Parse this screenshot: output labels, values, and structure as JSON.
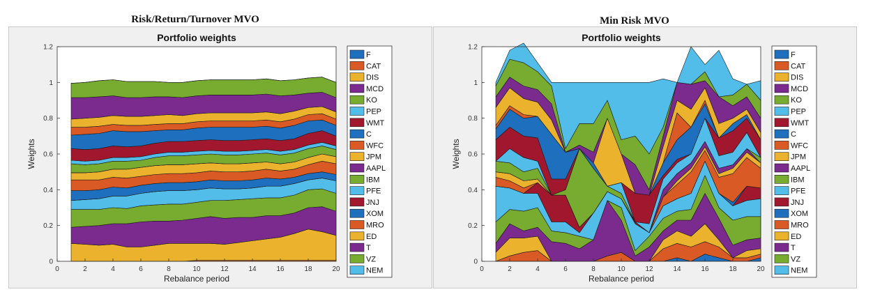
{
  "figures": [
    {
      "suptitle": "Risk/Return/Turnover MVO"
    },
    {
      "suptitle": "Min Risk MVO"
    }
  ],
  "chart_data": [
    {
      "type": "area",
      "title": "Portfolio weights",
      "xlabel": "Rebalance period",
      "ylabel": "Weights",
      "xlim": [
        0,
        20
      ],
      "ylim": [
        0,
        1.2
      ],
      "xticks": [
        0,
        2,
        4,
        6,
        8,
        10,
        12,
        14,
        16,
        18,
        20
      ],
      "yticks": [
        0,
        0.2,
        0.4,
        0.6,
        0.8,
        1,
        1.2
      ],
      "legend_position": "right",
      "x": [
        1,
        2,
        3,
        4,
        5,
        6,
        7,
        8,
        9,
        10,
        11,
        12,
        13,
        14,
        15,
        16,
        17,
        18,
        19,
        20
      ],
      "series": [
        {
          "name": "F",
          "color": "#1f6fbf",
          "values": [
            0,
            0,
            0,
            0,
            0,
            0,
            0,
            0,
            0,
            0,
            0,
            0,
            0,
            0,
            0,
            0,
            0,
            0,
            0,
            0
          ]
        },
        {
          "name": "CAT",
          "color": "#d95a24",
          "values": [
            0,
            0,
            0,
            0,
            0,
            0,
            0,
            0,
            0,
            0.005,
            0.005,
            0.005,
            0.005,
            0.005,
            0.005,
            0.005,
            0.005,
            0.005,
            0.005,
            0.005
          ]
        },
        {
          "name": "DIS",
          "color": "#ebb22e",
          "values": [
            0.1,
            0.095,
            0.09,
            0.095,
            0.08,
            0.08,
            0.09,
            0.1,
            0.1,
            0.095,
            0.095,
            0.09,
            0.1,
            0.11,
            0.12,
            0.13,
            0.15,
            0.175,
            0.16,
            0.14
          ]
        },
        {
          "name": "MCD",
          "color": "#7b2a8e",
          "values": [
            0.09,
            0.1,
            0.11,
            0.115,
            0.13,
            0.14,
            0.135,
            0.125,
            0.13,
            0.14,
            0.15,
            0.145,
            0.14,
            0.13,
            0.13,
            0.12,
            0.115,
            0.12,
            0.14,
            0.135
          ]
        },
        {
          "name": "KO",
          "color": "#77ac30",
          "values": [
            0.1,
            0.095,
            0.09,
            0.09,
            0.085,
            0.09,
            0.09,
            0.095,
            0.09,
            0.09,
            0.09,
            0.1,
            0.1,
            0.105,
            0.1,
            0.1,
            0.1,
            0.1,
            0.1,
            0.1
          ]
        },
        {
          "name": "PEP",
          "color": "#53bde9",
          "values": [
            0.05,
            0.055,
            0.06,
            0.065,
            0.07,
            0.07,
            0.075,
            0.075,
            0.075,
            0.07,
            0.07,
            0.065,
            0.06,
            0.06,
            0.065,
            0.065,
            0.065,
            0.055,
            0.06,
            0.07
          ]
        },
        {
          "name": "WMT",
          "color": "#a0172e",
          "values": [
            0,
            0,
            0,
            0,
            0,
            0,
            0,
            0,
            0,
            0,
            0,
            0,
            0,
            0,
            0,
            0,
            0,
            0,
            0,
            0
          ]
        },
        {
          "name": "C",
          "color": "#1f6fbf",
          "values": [
            0.055,
            0.05,
            0.05,
            0.05,
            0.045,
            0.045,
            0.045,
            0.045,
            0.045,
            0.045,
            0.045,
            0.045,
            0.045,
            0.045,
            0.045,
            0.04,
            0.035,
            0.035,
            0.035,
            0.035
          ]
        },
        {
          "name": "WFC",
          "color": "#d95a24",
          "values": [
            0.06,
            0.06,
            0.055,
            0.055,
            0.055,
            0.05,
            0.05,
            0.05,
            0.05,
            0.05,
            0.05,
            0.05,
            0.05,
            0.05,
            0.05,
            0.045,
            0.045,
            0.05,
            0.06,
            0.06
          ]
        },
        {
          "name": "JPM",
          "color": "#ebb22e",
          "values": [
            0.04,
            0.04,
            0.045,
            0.045,
            0.05,
            0.05,
            0.05,
            0.05,
            0.05,
            0.05,
            0.045,
            0.045,
            0.045,
            0.045,
            0.04,
            0.04,
            0.04,
            0.04,
            0.04,
            0.04
          ]
        },
        {
          "name": "AAPL",
          "color": "#7b2a8e",
          "values": [
            0,
            0,
            0,
            0,
            0,
            0,
            0,
            0,
            0,
            0,
            0,
            0,
            0,
            0,
            0,
            0,
            0,
            0,
            0,
            0
          ]
        },
        {
          "name": "IBM",
          "color": "#77ac30",
          "values": [
            0.05,
            0.045,
            0.045,
            0.045,
            0.045,
            0.04,
            0.045,
            0.05,
            0.05,
            0.05,
            0.05,
            0.05,
            0.05,
            0.05,
            0.05,
            0.05,
            0.05,
            0.05,
            0.045,
            0.04
          ]
        },
        {
          "name": "PFE",
          "color": "#53bde9",
          "values": [
            0.02,
            0.02,
            0.02,
            0.02,
            0.02,
            0.02,
            0.02,
            0.02,
            0.02,
            0.02,
            0.02,
            0.02,
            0.02,
            0.02,
            0.02,
            0.02,
            0.02,
            0.02,
            0.02,
            0.02
          ]
        },
        {
          "name": "JNJ",
          "color": "#a0172e",
          "values": [
            0.065,
            0.065,
            0.065,
            0.065,
            0.06,
            0.06,
            0.06,
            0.06,
            0.06,
            0.06,
            0.06,
            0.06,
            0.06,
            0.06,
            0.06,
            0.06,
            0.06,
            0.065,
            0.065,
            0.055
          ]
        },
        {
          "name": "XOM",
          "color": "#1f6fbf",
          "values": [
            0.075,
            0.085,
            0.085,
            0.085,
            0.085,
            0.08,
            0.07,
            0.065,
            0.065,
            0.07,
            0.07,
            0.075,
            0.075,
            0.07,
            0.07,
            0.07,
            0.075,
            0.07,
            0.06,
            0.06
          ]
        },
        {
          "name": "MRO",
          "color": "#d95a24",
          "values": [
            0.045,
            0.04,
            0.04,
            0.035,
            0.035,
            0.035,
            0.035,
            0.035,
            0.035,
            0.035,
            0.035,
            0.035,
            0.035,
            0.035,
            0.035,
            0.035,
            0.035,
            0.035,
            0.035,
            0.035
          ]
        },
        {
          "name": "ED",
          "color": "#ebb22e",
          "values": [
            0.045,
            0.05,
            0.05,
            0.05,
            0.05,
            0.05,
            0.05,
            0.05,
            0.045,
            0.045,
            0.045,
            0.045,
            0.045,
            0.045,
            0.045,
            0.045,
            0.045,
            0.04,
            0.04,
            0.04
          ]
        },
        {
          "name": "T",
          "color": "#7b2a8e",
          "values": [
            0.12,
            0.115,
            0.115,
            0.11,
            0.105,
            0.105,
            0.105,
            0.1,
            0.1,
            0.1,
            0.1,
            0.1,
            0.1,
            0.1,
            0.1,
            0.1,
            0.09,
            0.08,
            0.08,
            0.08
          ]
        },
        {
          "name": "VZ",
          "color": "#77ac30",
          "values": [
            0.08,
            0.085,
            0.09,
            0.09,
            0.09,
            0.09,
            0.085,
            0.08,
            0.085,
            0.085,
            0.085,
            0.085,
            0.085,
            0.085,
            0.085,
            0.085,
            0.085,
            0.085,
            0.085,
            0.085
          ]
        },
        {
          "name": "NEM",
          "color": "#53bde9",
          "values": [
            0,
            0,
            0,
            0,
            0,
            0,
            0,
            0,
            0,
            0,
            0,
            0,
            0,
            0,
            0,
            0,
            0,
            0,
            0,
            0
          ]
        }
      ]
    },
    {
      "type": "area",
      "title": "Portfolio weights",
      "xlabel": "Rebalance period",
      "ylabel": "Weights",
      "xlim": [
        0,
        20
      ],
      "ylim": [
        0,
        1.2
      ],
      "xticks": [
        0,
        2,
        4,
        6,
        8,
        10,
        12,
        14,
        16,
        18,
        20
      ],
      "yticks": [
        0,
        0.2,
        0.4,
        0.6,
        0.8,
        1,
        1.2
      ],
      "legend_position": "right",
      "x": [
        1,
        2,
        3,
        4,
        5,
        6,
        7,
        8,
        9,
        10,
        11,
        12,
        13,
        14,
        15,
        16,
        17,
        18,
        19,
        20
      ],
      "series": [
        {
          "name": "F",
          "color": "#1f6fbf",
          "values": [
            0,
            0,
            0,
            0,
            0,
            0,
            0,
            0,
            0,
            0,
            0,
            0,
            0,
            0.02,
            0,
            0.04,
            0.02,
            0,
            0,
            0.02
          ]
        },
        {
          "name": "CAT",
          "color": "#d95a24",
          "values": [
            0,
            0.03,
            0.05,
            0.06,
            0,
            0,
            0,
            0,
            0.03,
            0.05,
            0,
            0,
            0.07,
            0.08,
            0.08,
            0.07,
            0.06,
            0.02,
            0.02,
            0.02
          ]
        },
        {
          "name": "DIS",
          "color": "#ebb22e",
          "values": [
            0.05,
            0.1,
            0.08,
            0.08,
            0,
            0,
            0,
            0,
            0,
            0,
            0,
            0,
            0.05,
            0.07,
            0.06,
            0.1,
            0.04,
            0,
            0.04,
            0.03
          ]
        },
        {
          "name": "MCD",
          "color": "#7b2a8e",
          "values": [
            0.05,
            0.08,
            0.04,
            0.05,
            0.11,
            0.1,
            0.07,
            0.12,
            0.31,
            0.18,
            0.03,
            0.08,
            0.05,
            0.06,
            0.09,
            0.17,
            0.12,
            0.07,
            0.06,
            0.06
          ]
        },
        {
          "name": "KO",
          "color": "#77ac30",
          "values": [
            0.12,
            0.08,
            0.11,
            0.11,
            0.06,
            0.06,
            0.07,
            0,
            0,
            0.07,
            0.03,
            0.06,
            0.07,
            0.05,
            0.06,
            0.1,
            0.06,
            0.14,
            0.13,
            0.12
          ]
        },
        {
          "name": "PEP",
          "color": "#53bde9",
          "values": [
            0.2,
            0.12,
            0.1,
            0.08,
            0.05,
            0.06,
            0.02,
            0.15,
            0.05,
            0.05,
            0.15,
            0.02,
            0.07,
            0.07,
            0.09,
            0.08,
            0.08,
            0.08,
            0.09,
            0.1
          ]
        },
        {
          "name": "WMT",
          "color": "#a0172e",
          "values": [
            0,
            0,
            0,
            0.06,
            0.15,
            0.15,
            0.03,
            0,
            0,
            0,
            0.01,
            0,
            0,
            0,
            0,
            0,
            0,
            0,
            0.08,
            0.06
          ]
        },
        {
          "name": "C",
          "color": "#1f6fbf",
          "values": [
            0,
            0,
            0,
            0,
            0,
            0,
            0,
            0,
            0,
            0,
            0,
            0,
            0,
            0,
            0,
            0,
            0,
            0.02,
            0,
            0
          ]
        },
        {
          "name": "WFC",
          "color": "#d95a24",
          "values": [
            0.05,
            0.04,
            0.03,
            0,
            0,
            0,
            0,
            0,
            0,
            0,
            0,
            0,
            0.05,
            0.08,
            0.12,
            0.06,
            0.09,
            0.16,
            0.16,
            0.11
          ]
        },
        {
          "name": "JPM",
          "color": "#ebb22e",
          "values": [
            0.03,
            0.04,
            0.04,
            0.02,
            0,
            0,
            0,
            0,
            0,
            0,
            0,
            0,
            0,
            0.02,
            0.02,
            0.02,
            0.02,
            0.03,
            0.03,
            0.03
          ]
        },
        {
          "name": "AAPL",
          "color": "#7b2a8e",
          "values": [
            0,
            0,
            0,
            0,
            0,
            0,
            0,
            0,
            0,
            0,
            0,
            0,
            0.04,
            0.04,
            0.03,
            0.03,
            0.03,
            0.02,
            0.02,
            0
          ]
        },
        {
          "name": "IBM",
          "color": "#77ac30",
          "values": [
            0.06,
            0.06,
            0.05,
            0.06,
            0,
            0.03,
            0.44,
            0.25,
            0.03,
            0.03,
            0,
            0,
            0,
            0,
            0,
            0,
            0,
            0,
            0,
            0.03
          ]
        },
        {
          "name": "PFE",
          "color": "#53bde9",
          "values": [
            0,
            0.08,
            0.08,
            0.04,
            0,
            0,
            0,
            0,
            0,
            0.06,
            0,
            0.05,
            0.06,
            0.06,
            0.05,
            0.13,
            0.07,
            0.07,
            0.09,
            0
          ]
        },
        {
          "name": "JNJ",
          "color": "#a0172e",
          "values": [
            0.12,
            0.12,
            0.12,
            0.13,
            0.09,
            0.06,
            0,
            0,
            0,
            0,
            0.16,
            0.16,
            0.02,
            0.02,
            0,
            0,
            0.1,
            0.12,
            0.08,
            0.1
          ]
        },
        {
          "name": "XOM",
          "color": "#1f6fbf",
          "values": [
            0.06,
            0.1,
            0.1,
            0.12,
            0.25,
            0.15,
            0,
            0.03,
            0,
            0,
            0,
            0,
            0.07,
            0.11,
            0.15,
            0.08,
            0,
            0.04,
            0.02,
            0
          ]
        },
        {
          "name": "MRO",
          "color": "#d95a24",
          "values": [
            0.02,
            0.02,
            0.02,
            0,
            0,
            0,
            0,
            0,
            0,
            0,
            0,
            0,
            0,
            0.15,
            0,
            0.02,
            0,
            0,
            0,
            0
          ]
        },
        {
          "name": "ED",
          "color": "#ebb22e",
          "values": [
            0.1,
            0.1,
            0.09,
            0.08,
            0.08,
            0,
            0,
            0,
            0.38,
            0.16,
            0,
            0,
            0.09,
            0.07,
            0.1,
            0.07,
            0.08,
            0.03,
            0.03,
            0.04
          ]
        },
        {
          "name": "T",
          "color": "#7b2a8e",
          "values": [
            0.06,
            0.06,
            0.07,
            0.07,
            0.09,
            0,
            0.02,
            0.06,
            0,
            0,
            0.16,
            0.03,
            0.06,
            0.1,
            0.14,
            0.04,
            0.15,
            0.07,
            0.07,
            0.08
          ]
        },
        {
          "name": "VZ",
          "color": "#77ac30",
          "values": [
            0.06,
            0.1,
            0.13,
            0.1,
            0.1,
            0.02,
            0.12,
            0.16,
            0.1,
            0.08,
            0.16,
            0.2,
            0.05,
            0,
            0,
            0.05,
            0,
            0.06,
            0.07,
            0.1
          ]
        },
        {
          "name": "NEM",
          "color": "#53bde9",
          "values": [
            0.02,
            0.05,
            0.11,
            0.05,
            0.02,
            0.37,
            0.23,
            0.23,
            0.1,
            0.32,
            0.3,
            0.4,
            0.27,
            0,
            0.21,
            0.04,
            0.26,
            0.09,
            0,
            0.11
          ]
        }
      ]
    }
  ]
}
